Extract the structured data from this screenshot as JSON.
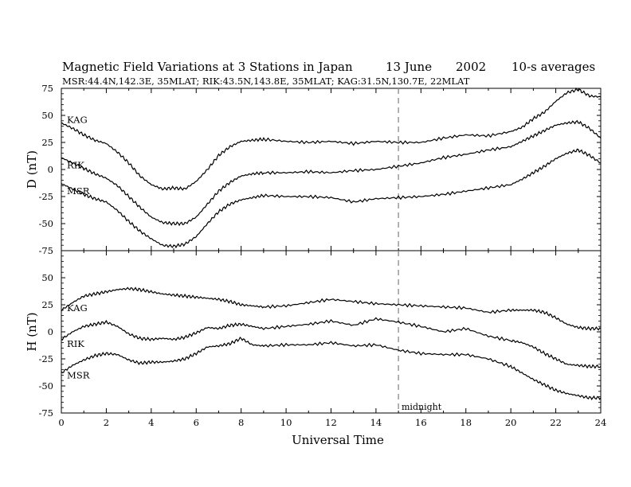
{
  "title": {
    "main": "Magnetic Field Variations at 3 Stations in Japan",
    "date": "13 June",
    "year": "2002",
    "averaging": "10-s averages",
    "subtitle": "MSR:44.4N,142.3E, 35MLAT;  RIK:43.5N,143.8E, 35MLAT;  KAG:31.5N,130.7E, 22MLAT"
  },
  "chart_data": {
    "type": "line",
    "xlabel": "Universal Time",
    "xlim": [
      0,
      24
    ],
    "x_ticks": [
      0,
      2,
      4,
      6,
      8,
      10,
      12,
      14,
      16,
      18,
      20,
      22,
      24
    ],
    "midnight_ut": 15,
    "midnight_label": "midnight",
    "panels": [
      {
        "key": "D",
        "ylabel": "D (nT)",
        "ylim": [
          -75,
          75
        ],
        "y_ticks": [
          75,
          50,
          25,
          0,
          -25,
          -50,
          -75
        ],
        "series": [
          {
            "name": "KAG",
            "x": [
              0,
              0.5,
              1,
              1.5,
              2,
              2.5,
              3,
              3.5,
              4,
              4.5,
              5,
              5.5,
              6,
              6.5,
              7,
              7.5,
              8,
              8.5,
              9,
              10,
              11,
              12,
              13,
              14,
              15,
              16,
              17,
              18,
              19,
              20,
              20.5,
              21,
              21.5,
              22,
              22.5,
              23,
              23.5,
              24
            ],
            "y": [
              43,
              38,
              32,
              27,
              24,
              16,
              6,
              -6,
              -14,
              -18,
              -17,
              -18,
              -11,
              0,
              13,
              21,
              26,
              27,
              28,
              26,
              25,
              26,
              24,
              26,
              25,
              25,
              29,
              32,
              31,
              35,
              39,
              47,
              53,
              63,
              71,
              74,
              68,
              67
            ]
          },
          {
            "name": "RIK",
            "x": [
              0,
              0.5,
              1,
              1.5,
              2,
              2.5,
              3,
              3.5,
              4,
              4.5,
              5,
              5.5,
              6,
              6.5,
              7,
              7.5,
              8,
              8.5,
              9,
              10,
              11,
              12,
              13,
              14,
              15,
              16,
              17,
              18,
              19,
              20,
              20.5,
              21,
              21.5,
              22,
              22.5,
              23,
              23.5,
              24
            ],
            "y": [
              11,
              6,
              1,
              -4,
              -8,
              -15,
              -25,
              -35,
              -44,
              -49,
              -50,
              -50,
              -44,
              -32,
              -20,
              -12,
              -6,
              -4,
              -3,
              -3,
              -2,
              -3,
              -1,
              0,
              3,
              6,
              11,
              14,
              18,
              21,
              26,
              31,
              36,
              41,
              43,
              44,
              38,
              29
            ]
          },
          {
            "name": "MSR",
            "x": [
              0,
              0.5,
              1,
              1.5,
              2,
              2.5,
              3,
              3.5,
              4,
              4.5,
              5,
              5.5,
              6,
              6.5,
              7,
              7.5,
              8,
              8.5,
              9,
              10,
              11,
              12,
              13,
              14,
              15,
              16,
              17,
              18,
              19,
              20,
              20.5,
              21,
              21.5,
              22,
              22.5,
              23,
              23.5,
              24
            ],
            "y": [
              -13,
              -18,
              -23,
              -27,
              -30,
              -38,
              -48,
              -57,
              -64,
              -70,
              -71,
              -69,
              -62,
              -50,
              -39,
              -32,
              -28,
              -26,
              -24,
              -25,
              -25,
              -26,
              -30,
              -27,
              -26,
              -25,
              -23,
              -20,
              -17,
              -14,
              -9,
              -3,
              3,
              10,
              15,
              18,
              13,
              6
            ]
          }
        ],
        "labels": [
          {
            "text": "KAG",
            "x": 0.25,
            "y": 46
          },
          {
            "text": "RIK",
            "x": 0.25,
            "y": 4
          },
          {
            "text": "MSR",
            "x": 0.25,
            "y": -20
          }
        ]
      },
      {
        "key": "H",
        "ylabel": "H (nT)",
        "ylim": [
          -75,
          75
        ],
        "y_ticks": [
          75,
          50,
          25,
          0,
          -25,
          -50,
          -75
        ],
        "series": [
          {
            "name": "KAG",
            "x": [
              0,
              0.5,
              1,
              1.5,
              2,
              2.5,
              3,
              3.5,
              4,
              4.5,
              5,
              5.5,
              6,
              6.5,
              7,
              7.5,
              8,
              8.5,
              9,
              10,
              11,
              12,
              13,
              14,
              15,
              16,
              17,
              18,
              19,
              20,
              20.5,
              21,
              21.5,
              22,
              22.5,
              23,
              23.5,
              24
            ],
            "y": [
              20,
              27,
              33,
              35,
              37,
              39,
              40,
              39,
              37,
              35,
              34,
              33,
              32,
              31,
              30,
              28,
              25,
              24,
              23,
              24,
              27,
              30,
              28,
              26,
              25,
              24,
              23,
              22,
              18,
              20,
              20,
              20,
              18,
              13,
              7,
              4,
              3,
              3
            ]
          },
          {
            "name": "RIK",
            "x": [
              0,
              0.5,
              1,
              1.5,
              2,
              2.5,
              3,
              3.5,
              4,
              4.5,
              5,
              5.5,
              6,
              6.5,
              7,
              7.5,
              8,
              8.5,
              9,
              10,
              11,
              12,
              13,
              14,
              15,
              16,
              17,
              18,
              19,
              20,
              20.5,
              21,
              21.5,
              22,
              22.5,
              23,
              23.5,
              24
            ],
            "y": [
              -7,
              0,
              5,
              7,
              9,
              5,
              -2,
              -6,
              -7,
              -6,
              -7,
              -5,
              -1,
              4,
              3,
              6,
              7,
              5,
              3,
              5,
              7,
              10,
              6,
              12,
              9,
              5,
              0,
              3,
              -4,
              -8,
              -10,
              -14,
              -20,
              -25,
              -30,
              -31,
              -32,
              -32
            ]
          },
          {
            "name": "MSR",
            "x": [
              0,
              0.5,
              1,
              1.5,
              2,
              2.5,
              3,
              3.5,
              4,
              4.5,
              5,
              5.5,
              6,
              6.5,
              7,
              7.5,
              8,
              8.5,
              9,
              10,
              11,
              12,
              13,
              14,
              15,
              16,
              17,
              18,
              19,
              20,
              20.5,
              21,
              21.5,
              22,
              22.5,
              23,
              23.5,
              24
            ],
            "y": [
              -38,
              -31,
              -26,
              -22,
              -20,
              -21,
              -26,
              -29,
              -28,
              -28,
              -27,
              -25,
              -20,
              -14,
              -13,
              -11,
              -6,
              -12,
              -13,
              -12,
              -12,
              -10,
              -13,
              -12,
              -17,
              -20,
              -21,
              -21,
              -25,
              -32,
              -38,
              -44,
              -49,
              -54,
              -57,
              -59,
              -61,
              -61
            ]
          }
        ],
        "labels": [
          {
            "text": "KAG",
            "x": 0.25,
            "y": 22
          },
          {
            "text": "RIK",
            "x": 0.25,
            "y": -11
          },
          {
            "text": "MSR",
            "x": 0.25,
            "y": -40
          }
        ]
      }
    ]
  }
}
